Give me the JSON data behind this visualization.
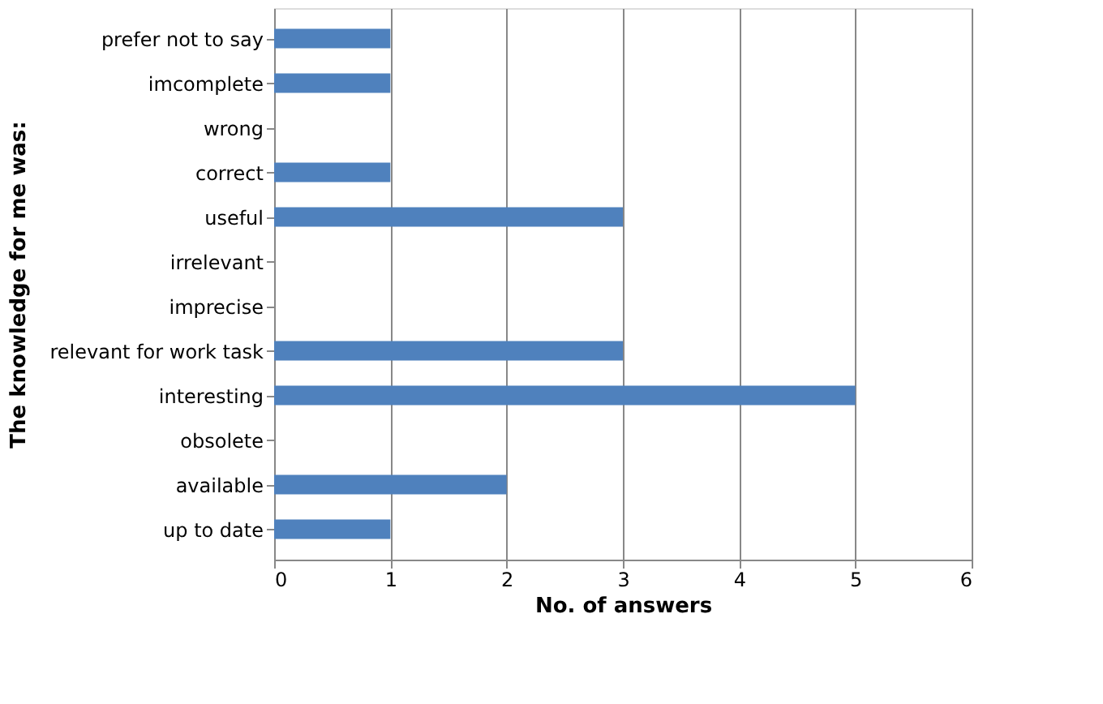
{
  "chart_data": {
    "type": "bar",
    "orientation": "horizontal",
    "xlabel": "No. of answers",
    "ylabel": "The knowledge for me was:",
    "categories": [
      "prefer not to say",
      "imcomplete",
      "wrong",
      "correct",
      "useful",
      "irrelevant",
      "imprecise",
      "relevant for work task",
      "interesting",
      "obsolete",
      "available",
      "up to date"
    ],
    "values": [
      1,
      1,
      0,
      1,
      3,
      0,
      0,
      3,
      5,
      0,
      2,
      1
    ],
    "color": "#4f81bd",
    "xlim": [
      0,
      6
    ],
    "xticks": [
      0,
      1,
      2,
      3,
      4,
      5,
      6
    ],
    "grid": "x"
  }
}
